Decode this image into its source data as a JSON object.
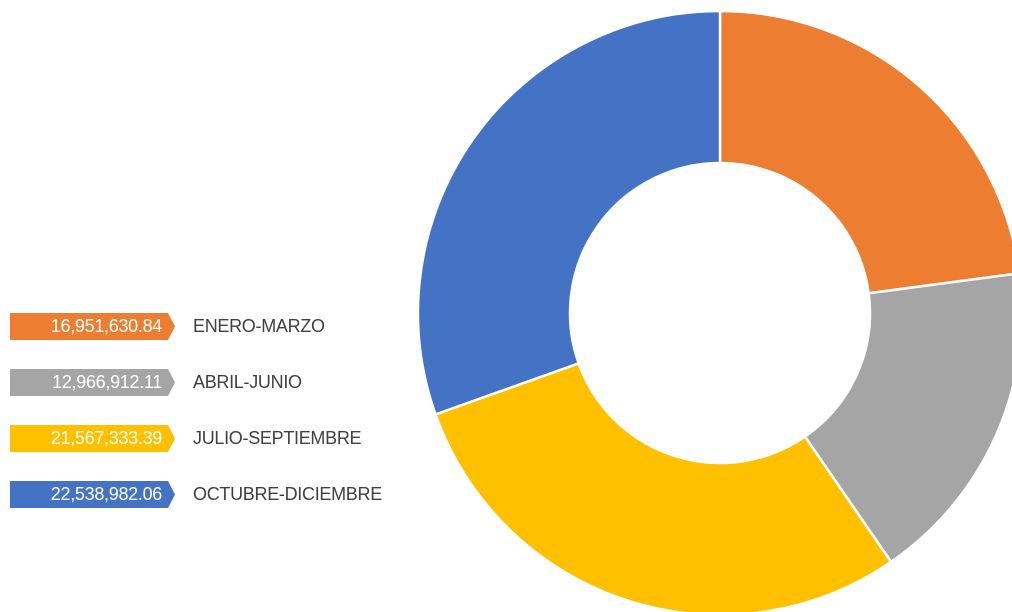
{
  "chart_data": {
    "type": "donut",
    "title": "",
    "series": [
      {
        "label": "ENERO-MARZO",
        "value_text": "16,951,630.84",
        "value": 16951630.84,
        "color": "#ED7D31"
      },
      {
        "label": "ABRIL-JUNIO",
        "value_text": "12,966,912.11",
        "value": 12966912.11,
        "color": "#A5A5A5"
      },
      {
        "label": "JULIO-SEPTIEMBRE",
        "value_text": "21,567,333.39",
        "value": 21567333.39,
        "color": "#FFC000"
      },
      {
        "label": "OCTUBRE-DICIEMBRE",
        "value_text": "22,538,982.06",
        "value": 22538982.06,
        "color": "#4472C4"
      }
    ],
    "legend_position": "left"
  }
}
